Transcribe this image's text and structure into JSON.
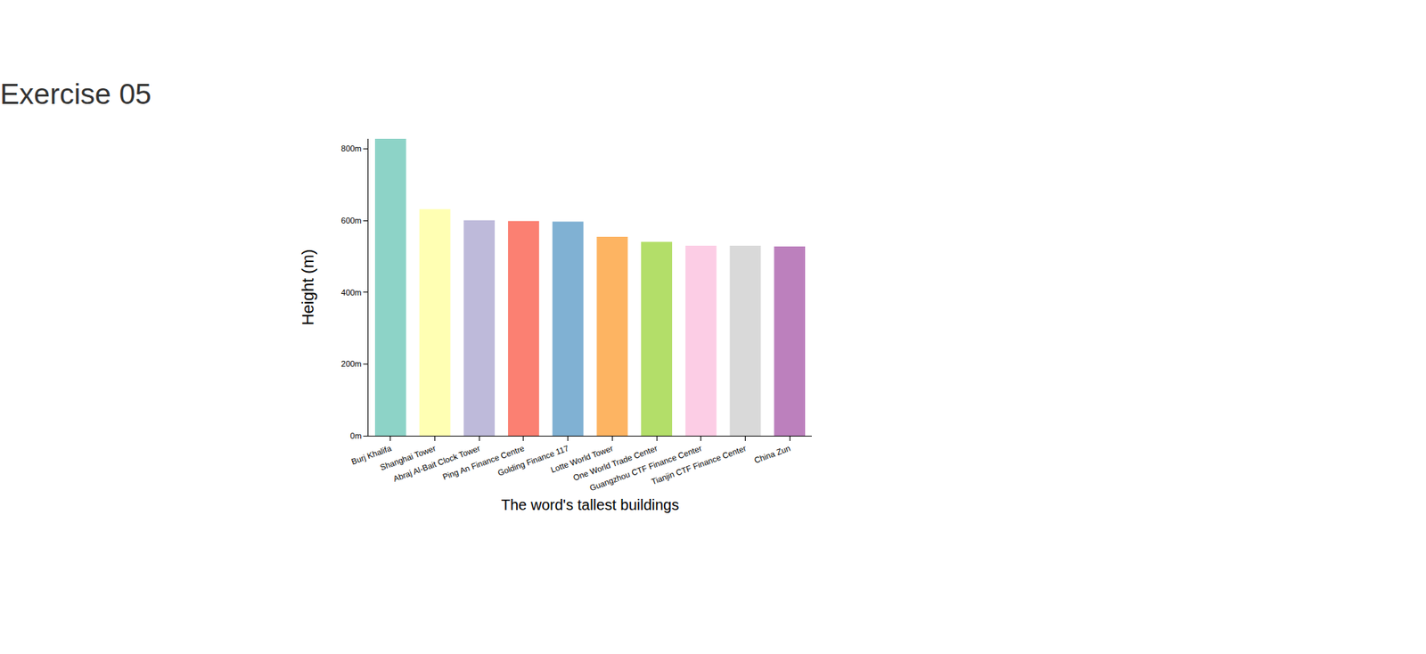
{
  "chart_data": {
    "type": "bar",
    "title": "Exercise 05",
    "xlabel": "The word's tallest buildings",
    "ylabel": "Height (m)",
    "categories": [
      "Burj Khalifa",
      "Shanghai Tower",
      "Abraj Al-Bait Clock Tower",
      "Ping An Finance Centre",
      "Golding Finance 117",
      "Lotte World Tower",
      "One World Trade Center",
      "Guangzhou CTF Finance Center",
      "Tianjin CTF Finance Center",
      "China Zun"
    ],
    "values": [
      828,
      632,
      601,
      599,
      597,
      555,
      541,
      530,
      530,
      528
    ],
    "colors": [
      "#8dd3c7",
      "#ffffb3",
      "#bebada",
      "#fb8072",
      "#80b1d3",
      "#fdb462",
      "#b3de69",
      "#fccde5",
      "#d9d9d9",
      "#bc80bd"
    ],
    "ylim": [
      0,
      828
    ],
    "yticks": [
      {
        "value": 0,
        "label": "0m"
      },
      {
        "value": 200,
        "label": "200m"
      },
      {
        "value": 400,
        "label": "400m"
      },
      {
        "value": 600,
        "label": "600m"
      },
      {
        "value": 800,
        "label": "800m"
      }
    ],
    "grid": false
  }
}
